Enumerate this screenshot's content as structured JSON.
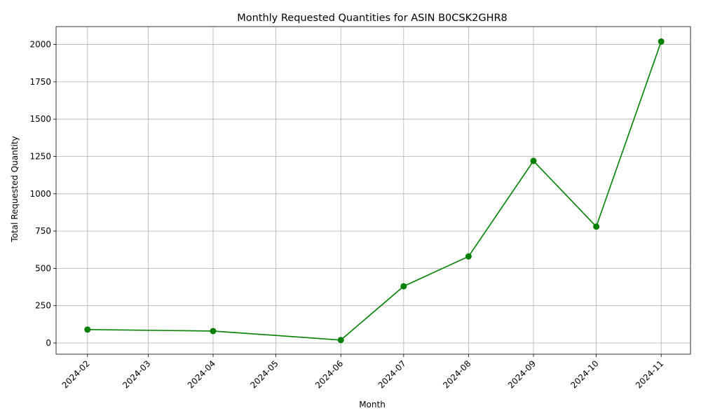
{
  "chart_data": {
    "type": "line",
    "title": "Monthly Requested Quantities for ASIN B0CSK2GHR8",
    "xlabel": "Month",
    "ylabel": "Total Requested Quantity",
    "x_ticks": [
      "2024-02",
      "2024-03",
      "2024-04",
      "2024-05",
      "2024-06",
      "2024-07",
      "2024-08",
      "2024-09",
      "2024-10",
      "2024-11"
    ],
    "y_ticks": [
      0,
      250,
      500,
      750,
      1000,
      1250,
      1500,
      1750,
      2000
    ],
    "ylim": [
      -75,
      2120
    ],
    "xlim": [
      "2024-01-17",
      "2024-11-15"
    ],
    "grid": true,
    "color": "#008000",
    "series": [
      {
        "x": [
          "2024-02-01",
          "2024-04-01",
          "2024-06-01",
          "2024-07-01",
          "2024-08-01",
          "2024-09-01",
          "2024-10-01",
          "2024-11-01"
        ],
        "values": [
          90,
          80,
          20,
          380,
          580,
          1220,
          780,
          2020
        ]
      }
    ]
  }
}
